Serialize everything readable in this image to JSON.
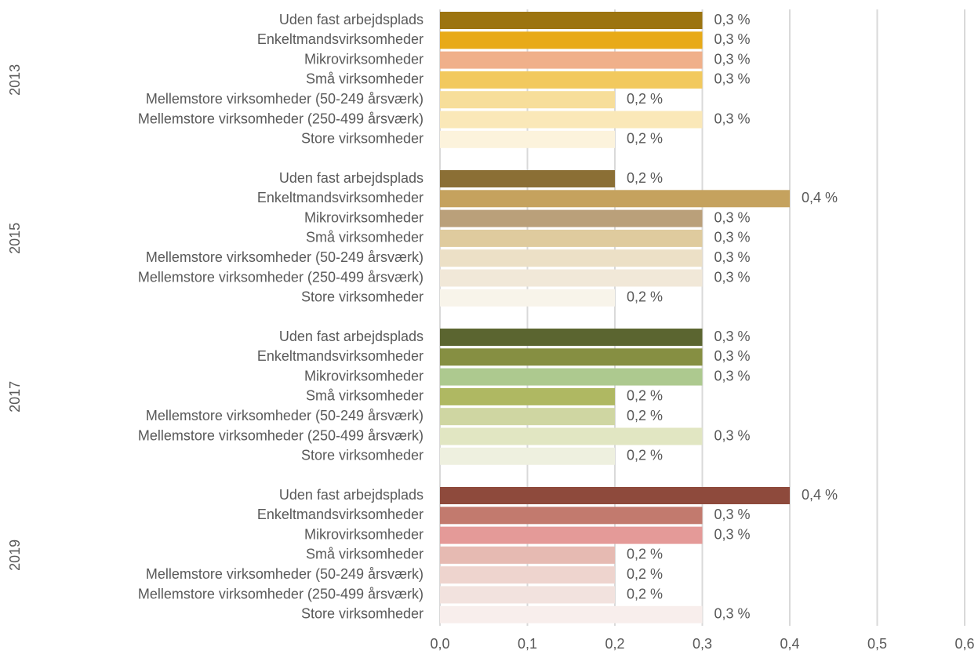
{
  "chart_data": {
    "type": "hbar",
    "xlim": [
      0,
      0.6
    ],
    "xticks": [
      {
        "value": 0,
        "label": "0,0"
      },
      {
        "value": 0.1,
        "label": "0,1"
      },
      {
        "value": 0.2,
        "label": "0,2"
      },
      {
        "value": 0.3,
        "label": "0,3"
      },
      {
        "value": 0.4,
        "label": "0,4"
      },
      {
        "value": 0.5,
        "label": "0,5"
      },
      {
        "value": 0.6,
        "label": "0,6"
      }
    ],
    "grid": true,
    "groups": [
      {
        "name": "2013",
        "categories": [
          "Uden fast arbejdsplads",
          "Enkeltmandsvirksomheder",
          "Mikrovirksomheder",
          "Små virksomheder",
          "Mellemstore virksomheder (50-249 årsværk)",
          "Mellemstore virksomheder (250-499 årsværk)",
          "Store virksomheder"
        ],
        "values": [
          0.3,
          0.3,
          0.3,
          0.3,
          0.2,
          0.3,
          0.2
        ],
        "value_labels": [
          "0,3 %",
          "0,3 %",
          "0,3 %",
          "0,3 %",
          "0,2 %",
          "0,3 %",
          "0,2 %"
        ],
        "colors": [
          "#9c7410",
          "#e8aa18",
          "#f0b08a",
          "#f2c95e",
          "#f7de9a",
          "#fae8b8",
          "#fcf3dc"
        ]
      },
      {
        "name": "2015",
        "categories": [
          "Uden fast arbejdsplads",
          "Enkeltmandsvirksomheder",
          "Mikrovirksomheder",
          "Små virksomheder",
          "Mellemstore virksomheder (50-249 årsværk)",
          "Mellemstore virksomheder (250-499 årsværk)",
          "Store virksomheder"
        ],
        "values": [
          0.2,
          0.4,
          0.3,
          0.3,
          0.3,
          0.3,
          0.2
        ],
        "value_labels": [
          "0,2 %",
          "0,4 %",
          "0,3 %",
          "0,3 %",
          "0,3 %",
          "0,3 %",
          "0,2 %"
        ],
        "colors": [
          "#8b6f35",
          "#c5a25e",
          "#baa07a",
          "#dfcb9e",
          "#ece0c6",
          "#f1e8d8",
          "#f8f4ea"
        ]
      },
      {
        "name": "2017",
        "categories": [
          "Uden fast arbejdsplads",
          "Enkeltmandsvirksomheder",
          "Mikrovirksomheder",
          "Små virksomheder",
          "Mellemstore virksomheder (50-249 årsværk)",
          "Mellemstore virksomheder (250-499 årsværk)",
          "Store virksomheder"
        ],
        "values": [
          0.3,
          0.3,
          0.3,
          0.2,
          0.2,
          0.3,
          0.2
        ],
        "value_labels": [
          "0,3 %",
          "0,3 %",
          "0,3 %",
          "0,2 %",
          "0,2 %",
          "0,3 %",
          "0,2 %"
        ],
        "colors": [
          "#5b6530",
          "#868f42",
          "#adc98f",
          "#afb862",
          "#cfd6a2",
          "#e1e6c2",
          "#eef0df"
        ]
      },
      {
        "name": "2019",
        "categories": [
          "Uden fast arbejdsplads",
          "Enkeltmandsvirksomheder",
          "Mikrovirksomheder",
          "Små virksomheder",
          "Mellemstore virksomheder (50-249 årsværk)",
          "Mellemstore virksomheder (250-499 årsværk)",
          "Store virksomheder"
        ],
        "values": [
          0.4,
          0.3,
          0.3,
          0.2,
          0.2,
          0.2,
          0.3
        ],
        "value_labels": [
          "0,4 %",
          "0,3 %",
          "0,3 %",
          "0,2 %",
          "0,2 %",
          "0,2 %",
          "0,3 %"
        ],
        "colors": [
          "#8e4a3c",
          "#c27a6e",
          "#e49a98",
          "#e6bab2",
          "#eed4ce",
          "#f2e2de",
          "#f8eeec"
        ]
      }
    ]
  }
}
